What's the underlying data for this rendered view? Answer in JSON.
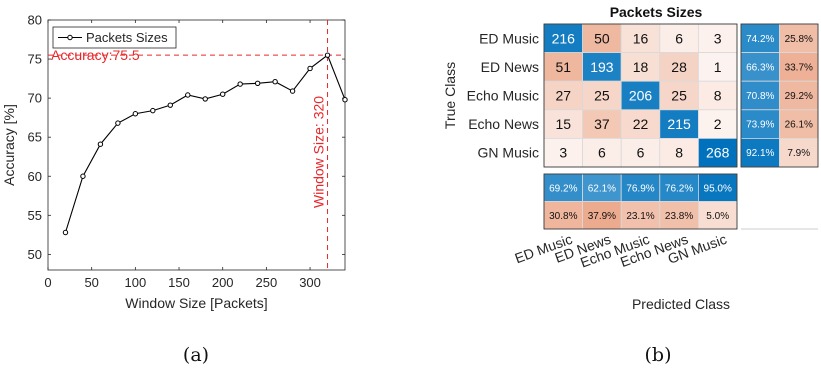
{
  "chart_data": [
    {
      "type": "line",
      "panel": "(a)",
      "xlabel": "Window Size [Packets]",
      "ylabel": "Accuracy [%]",
      "xlim": [
        0,
        340
      ],
      "ylim": [
        48,
        80
      ],
      "xticks": [
        0,
        50,
        100,
        150,
        200,
        250,
        300
      ],
      "yticks": [
        50,
        55,
        60,
        65,
        70,
        75,
        80
      ],
      "legend_position": "top-left",
      "series": [
        {
          "name": "Packets Sizes",
          "color": "#000000",
          "x": [
            20,
            40,
            60,
            80,
            100,
            120,
            140,
            160,
            180,
            200,
            220,
            240,
            260,
            280,
            300,
            320,
            340
          ],
          "y": [
            52.8,
            60.0,
            64.1,
            66.8,
            68.0,
            68.4,
            69.1,
            70.4,
            69.9,
            70.5,
            71.8,
            71.9,
            72.1,
            70.9,
            73.8,
            75.5,
            69.8
          ]
        }
      ],
      "annotations": {
        "accuracy_label": "Accuracy:75.5",
        "accuracy_value": 75.5,
        "window_label": "Window Size: 320",
        "window_value": 320,
        "annotation_color": "#e8282b"
      }
    },
    {
      "type": "heatmap",
      "panel": "(b)",
      "title": "Packets Sizes",
      "xlabel": "Predicted Class",
      "ylabel": "True Class",
      "classes": [
        "ED Music",
        "ED News",
        "Echo Music",
        "Echo News",
        "GN Music"
      ],
      "matrix": [
        [
          216,
          50,
          16,
          6,
          3
        ],
        [
          51,
          193,
          18,
          28,
          1
        ],
        [
          27,
          25,
          206,
          25,
          8
        ],
        [
          15,
          37,
          22,
          215,
          2
        ],
        [
          3,
          6,
          6,
          8,
          268
        ]
      ],
      "row_summary": [
        [
          "74.2%",
          "25.8%"
        ],
        [
          "66.3%",
          "33.7%"
        ],
        [
          "70.8%",
          "29.2%"
        ],
        [
          "73.9%",
          "26.1%"
        ],
        [
          "92.1%",
          "7.9%"
        ]
      ],
      "row_summary_values": [
        [
          74.2,
          25.8
        ],
        [
          66.3,
          33.7
        ],
        [
          70.8,
          29.2
        ],
        [
          73.9,
          26.1
        ],
        [
          92.1,
          7.9
        ]
      ],
      "col_summary": [
        [
          "69.2%",
          "62.1%",
          "76.9%",
          "76.2%",
          "95.0%"
        ],
        [
          "30.8%",
          "37.9%",
          "23.1%",
          "23.8%",
          "5.0%"
        ]
      ],
      "col_summary_values": [
        [
          69.2,
          62.1,
          76.9,
          76.2,
          95.0
        ],
        [
          30.8,
          37.9,
          23.1,
          23.8,
          5.0
        ]
      ],
      "colors": {
        "correct": "#0072bd",
        "incorrect": "#d95319"
      }
    }
  ],
  "captions": {
    "a": "(a)",
    "b": "(b)"
  }
}
